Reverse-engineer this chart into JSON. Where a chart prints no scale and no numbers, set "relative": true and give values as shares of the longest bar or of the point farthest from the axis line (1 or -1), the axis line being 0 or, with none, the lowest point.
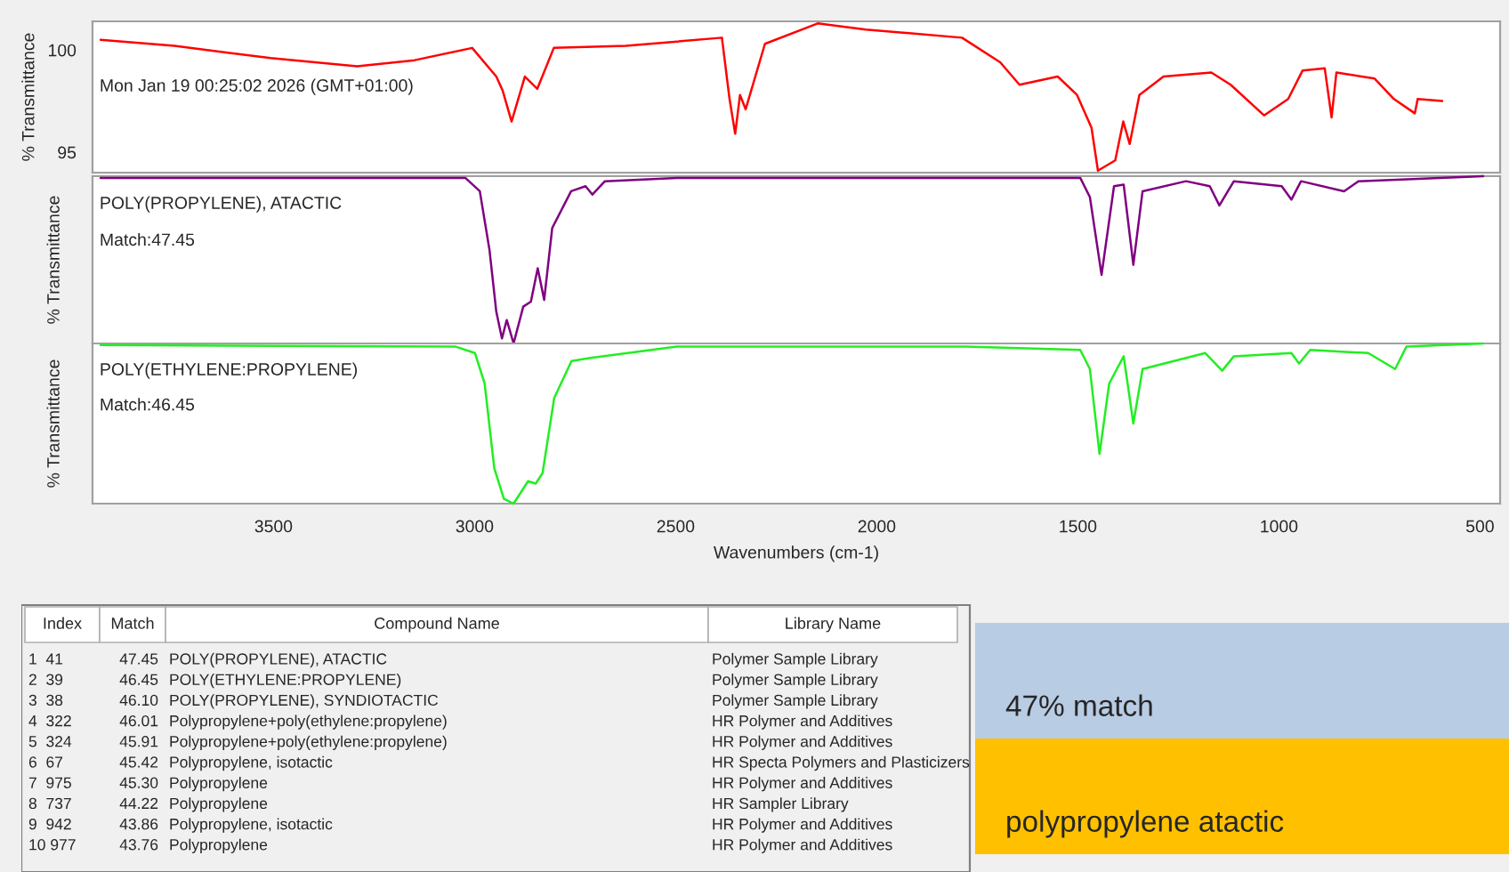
{
  "chart_data": [
    {
      "type": "line",
      "ylabel": "% Transmittance",
      "annotations": [
        "Mon Jan 19 00:25:02 2026 (GMT+01:00)"
      ],
      "xlim": [
        3950,
        450
      ],
      "xticks": [
        3500,
        3000,
        2500,
        2000,
        1500,
        1000,
        500
      ],
      "ylim": [
        94,
        101.4
      ],
      "yticks": [
        100,
        95
      ],
      "tick_labels": "y",
      "grid": false,
      "legend": false,
      "series": [
        {
          "color": "#ff0000",
          "x": [
            3930,
            3746,
            3507,
            3292,
            3149,
            3006,
            2946,
            2930,
            2908,
            2875,
            2844,
            2803,
            2624,
            2385,
            2366,
            2352,
            2340,
            2326,
            2278,
            2147,
            2027,
            1788,
            1693,
            1645,
            1550,
            1502,
            1466,
            1450,
            1407,
            1387,
            1371,
            1347,
            1287,
            1168,
            1120,
            1037,
            977,
            941,
            886,
            869,
            857,
            762,
            714,
            662,
            655,
            594
          ],
          "values": [
            100.5,
            100.2,
            99.6,
            99.2,
            99.5,
            100.1,
            98.7,
            98.0,
            96.5,
            98.7,
            98.1,
            100.1,
            100.2,
            100.6,
            97.6,
            95.9,
            97.8,
            97.1,
            100.3,
            101.3,
            101.0,
            100.6,
            99.4,
            98.3,
            98.7,
            97.8,
            96.2,
            94.1,
            94.6,
            96.5,
            95.4,
            97.8,
            98.7,
            98.9,
            98.3,
            96.8,
            97.6,
            99.0,
            99.1,
            96.7,
            98.9,
            98.6,
            97.6,
            96.9,
            97.6,
            97.5
          ]
        }
      ]
    },
    {
      "type": "line",
      "ylabel": "% Transmittance",
      "relative": true,
      "annotations": [
        "POLY(PROPYLENE), ATACTIC",
        "Match:47.45"
      ],
      "xlim": [
        3950,
        450
      ],
      "xticks": [
        3500,
        3000,
        2500,
        2000,
        1500,
        1000,
        500
      ],
      "tick_labels": false,
      "grid": false,
      "legend": false,
      "series": [
        {
          "color": "#800080",
          "x": [
            3930,
            3023,
            2987,
            2963,
            2946,
            2932,
            2920,
            2903,
            2879,
            2860,
            2843,
            2827,
            2807,
            2760,
            2724,
            2707,
            2676,
            2497,
            1494,
            1470,
            1441,
            1410,
            1386,
            1362,
            1339,
            1231,
            1172,
            1148,
            1112,
            993,
            969,
            945,
            838,
            802,
            492
          ],
          "values": [
            0.99,
            0.99,
            0.91,
            0.56,
            0.19,
            0.03,
            0.14,
            0.0,
            0.22,
            0.25,
            0.45,
            0.26,
            0.69,
            0.91,
            0.94,
            0.89,
            0.97,
            0.99,
            0.99,
            0.875,
            0.41,
            0.94,
            0.95,
            0.47,
            0.91,
            0.97,
            0.94,
            0.825,
            0.97,
            0.94,
            0.86,
            0.97,
            0.91,
            0.97,
            1.0
          ]
        }
      ]
    },
    {
      "type": "line",
      "ylabel": "% Transmittance",
      "xlabel": "Wavenumbers (cm-1)",
      "relative": true,
      "annotations": [
        "POLY(ETHYLENE:PROPYLENE)",
        "Match:46.45"
      ],
      "xlim": [
        3950,
        450
      ],
      "xticks": [
        3500,
        3000,
        2500,
        2000,
        1500,
        1000,
        500
      ],
      "tick_labels": "x",
      "grid": false,
      "legend": false,
      "series": [
        {
          "color": "#22ee22",
          "x": [
            3930,
            3047,
            2999,
            2975,
            2951,
            2927,
            2903,
            2867,
            2848,
            2831,
            2802,
            2759,
            2712,
            2497,
            1779,
            1494,
            1470,
            1446,
            1422,
            1386,
            1362,
            1339,
            1183,
            1141,
            1112,
            969,
            950,
            922,
            778,
            711,
            683,
            492
          ],
          "values": [
            0.99,
            0.98,
            0.94,
            0.75,
            0.22,
            0.03,
            0.0,
            0.14,
            0.125,
            0.19,
            0.66,
            0.89,
            0.91,
            0.98,
            0.98,
            0.96,
            0.84,
            0.31,
            0.75,
            0.92,
            0.5,
            0.84,
            0.94,
            0.83,
            0.92,
            0.94,
            0.875,
            0.96,
            0.94,
            0.84,
            0.98,
            1.0
          ]
        }
      ]
    },
    {
      "type": "other",
      "categories": [
        "Index",
        "Match",
        "Compound Name",
        "Library Name"
      ],
      "cell_labels": [
        [
          "1  41",
          "47.45",
          "POLY(PROPYLENE), ATACTIC",
          "Polymer Sample Library"
        ],
        [
          "2  39",
          "46.45",
          "POLY(ETHYLENE:PROPYLENE)",
          "Polymer Sample Library"
        ],
        [
          "3  38",
          "46.10",
          "POLY(PROPYLENE), SYNDIOTACTIC",
          "Polymer Sample Library"
        ],
        [
          "4  322",
          "46.01",
          "Polypropylene+poly(ethylene:propylene)",
          "HR Polymer and Additives"
        ],
        [
          "5  324",
          "45.91",
          "Polypropylene+poly(ethylene:propylene)",
          "HR Polymer and Additives"
        ],
        [
          "6  67",
          "45.42",
          "Polypropylene, isotactic",
          "HR Specta Polymers and Plasticizers"
        ],
        [
          "7  975",
          "45.30",
          "Polypropylene",
          "HR Polymer and Additives"
        ],
        [
          "8  737",
          "44.22",
          "Polypropylene",
          "HR Sampler Library"
        ],
        [
          "9  942",
          "43.86",
          "Polypropylene, isotactic",
          "HR Polymer and Additives"
        ],
        [
          "10 977",
          "43.76",
          "Polypropylene",
          "HR Polymer and Additives"
        ]
      ],
      "annotations": [
        "47% match",
        "polypropylene atactic"
      ],
      "colors": [
        "#b8cce4",
        "#ffc000"
      ]
    }
  ]
}
